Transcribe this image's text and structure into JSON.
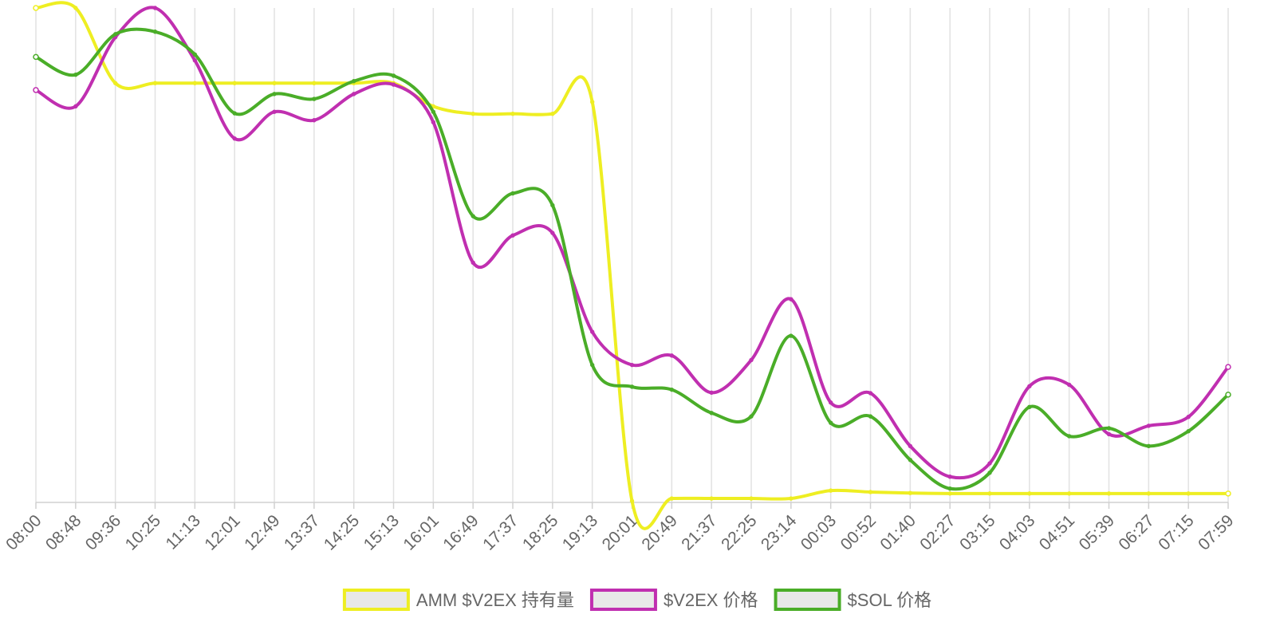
{
  "chart_data": {
    "type": "line",
    "title": "",
    "xlabel": "",
    "ylabel": "",
    "categories": [
      "08:00",
      "08:48",
      "09:36",
      "10:25",
      "11:13",
      "12:01",
      "12:49",
      "13:37",
      "14:25",
      "15:13",
      "16:01",
      "16:49",
      "17:37",
      "18:25",
      "19:13",
      "20:01",
      "20:49",
      "21:37",
      "22:25",
      "23:14",
      "00:03",
      "00:52",
      "01:40",
      "02:27",
      "03:15",
      "04:03",
      "04:51",
      "05:39",
      "06:27",
      "07:15",
      "07:59"
    ],
    "grid": {
      "vertical": true,
      "horizontal": false
    },
    "legend_position": "bottom",
    "series": [
      {
        "name": "AMM $V2EX 持有量",
        "color": "#eeee22",
        "values": [
          0.0,
          0.0,
          15.2,
          15.2,
          15.2,
          15.2,
          15.2,
          15.2,
          15.2,
          15.2,
          19.9,
          21.4,
          21.4,
          21.4,
          19.0,
          99.7,
          99.2,
          99.2,
          99.2,
          99.2,
          97.6,
          97.9,
          98.1,
          98.2,
          98.2,
          98.2,
          98.2,
          98.2,
          98.2,
          98.2,
          98.2
        ]
      },
      {
        "name": "$V2EX 价格",
        "color": "#c02fb0",
        "values": [
          16.6,
          19.9,
          5.9,
          0.0,
          10.6,
          26.4,
          21.0,
          22.7,
          17.4,
          15.5,
          23.1,
          51.5,
          46.0,
          45.5,
          65.5,
          72.2,
          70.3,
          77.8,
          71.2,
          58.9,
          79.8,
          77.9,
          88.6,
          94.8,
          92.1,
          76.5,
          76.2,
          86.2,
          84.5,
          82.7,
          72.6
        ]
      },
      {
        "name": "$SOL 价格",
        "color": "#4aad28",
        "values": [
          9.9,
          13.5,
          5.3,
          4.8,
          9.4,
          21.3,
          17.4,
          18.4,
          14.8,
          13.7,
          21.0,
          42.1,
          37.5,
          39.9,
          72.2,
          76.6,
          77.2,
          81.9,
          82.6,
          66.3,
          83.9,
          82.6,
          91.4,
          97.2,
          94.0,
          80.7,
          86.6,
          85.0,
          88.6,
          85.6,
          78.2
        ]
      }
    ]
  }
}
